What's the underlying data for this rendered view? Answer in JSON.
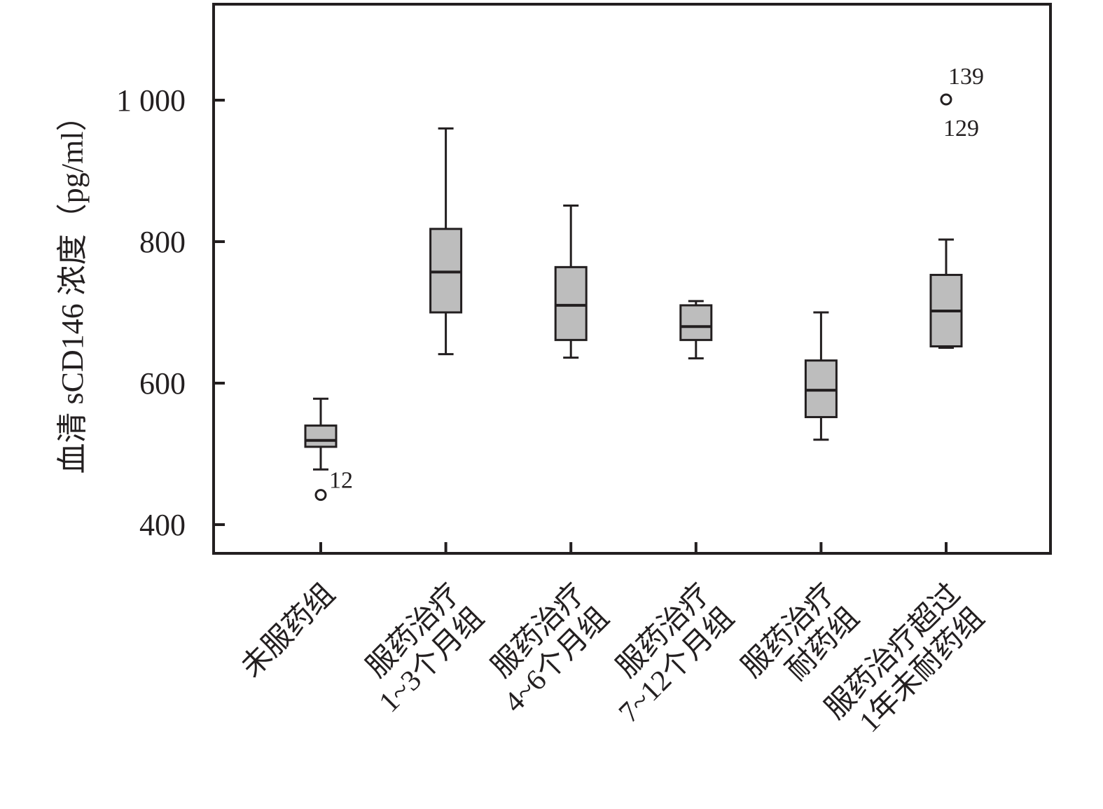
{
  "chart_data": {
    "type": "box",
    "title": "",
    "ylabel": "血清 sCD146 浓度（pg/ml）",
    "xlabel": "",
    "ylim": [
      360,
      1135
    ],
    "yticks": [
      400,
      600,
      800,
      1000
    ],
    "ytick_labels": [
      "400",
      "600",
      "800",
      "1 000"
    ],
    "colors": {
      "box_fill": "#bdbdbd",
      "stroke": "#231f20"
    },
    "grid": false,
    "categories": [
      [
        "未服药组"
      ],
      [
        "服药治疗",
        "1~3个月组"
      ],
      [
        "服药治疗",
        "4~6个月组"
      ],
      [
        "服药治疗",
        "7~12个月组"
      ],
      [
        "服药治疗",
        "耐药组"
      ],
      [
        "服药治疗超过",
        "1年未耐药组"
      ]
    ],
    "boxes": [
      {
        "whisker_low": 478,
        "q1": 510,
        "median": 519,
        "q3": 540,
        "whisker_high": 578
      },
      {
        "whisker_low": 641,
        "q1": 700,
        "median": 757,
        "q3": 818,
        "whisker_high": 960
      },
      {
        "whisker_low": 636,
        "q1": 661,
        "median": 710,
        "q3": 764,
        "whisker_high": 851
      },
      {
        "whisker_low": 635,
        "q1": 661,
        "median": 680,
        "q3": 710,
        "whisker_high": 716
      },
      {
        "whisker_low": 520,
        "q1": 552,
        "median": 590,
        "q3": 632,
        "whisker_high": 700
      },
      {
        "whisker_low": 650,
        "q1": 652,
        "median": 702,
        "q3": 753,
        "whisker_high": 803
      }
    ],
    "outliers": [
      {
        "group": 0,
        "value": 442,
        "labels": [
          "12"
        ]
      },
      {
        "group": 5,
        "value": 1001,
        "labels": [
          "139",
          "129"
        ]
      }
    ]
  }
}
